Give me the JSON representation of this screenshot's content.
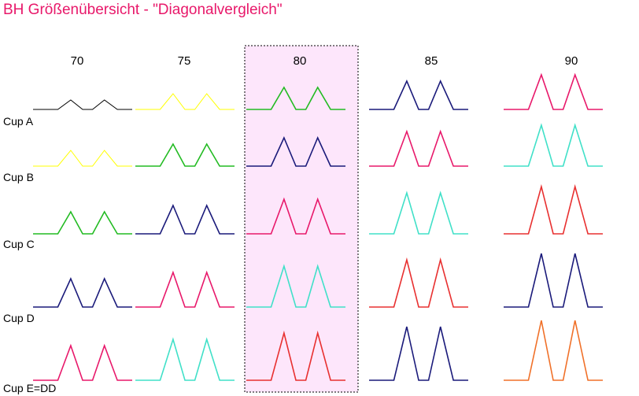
{
  "title": "BH Größenübersicht - \"Diagonalvergleich\"",
  "chart_data": {
    "type": "line",
    "title": "BH Größenübersicht - \"Diagonalvergleich\"",
    "columns": [
      "70",
      "75",
      "80",
      "85",
      "90"
    ],
    "rows": [
      "Cup A",
      "Cup B",
      "Cup C",
      "Cup D",
      "Cup E=DD"
    ],
    "highlighted_column": "80",
    "highlight_color": "#fde6fb",
    "diagonal_colors": [
      "#000000",
      "#ffff00",
      "#22bb22",
      "#1a1a7a",
      "#e8186a",
      "#40e0c8",
      "#e83030",
      "#1a1a7a",
      "#f07028"
    ],
    "cells": [
      {
        "row": "Cup A",
        "col": "70",
        "level": 1,
        "color": "#000000"
      },
      {
        "row": "Cup A",
        "col": "75",
        "level": 2,
        "color": "#ffff00"
      },
      {
        "row": "Cup A",
        "col": "80",
        "level": 3,
        "color": "#22bb22"
      },
      {
        "row": "Cup A",
        "col": "85",
        "level": 4,
        "color": "#1a1a7a"
      },
      {
        "row": "Cup A",
        "col": "90",
        "level": 5,
        "color": "#e8186a"
      },
      {
        "row": "Cup B",
        "col": "70",
        "level": 2,
        "color": "#ffff00"
      },
      {
        "row": "Cup B",
        "col": "75",
        "level": 3,
        "color": "#22bb22"
      },
      {
        "row": "Cup B",
        "col": "80",
        "level": 4,
        "color": "#1a1a7a"
      },
      {
        "row": "Cup B",
        "col": "85",
        "level": 5,
        "color": "#e8186a"
      },
      {
        "row": "Cup B",
        "col": "90",
        "level": 6,
        "color": "#40e0c8"
      },
      {
        "row": "Cup C",
        "col": "70",
        "level": 3,
        "color": "#22bb22"
      },
      {
        "row": "Cup C",
        "col": "75",
        "level": 4,
        "color": "#1a1a7a"
      },
      {
        "row": "Cup C",
        "col": "80",
        "level": 5,
        "color": "#e8186a"
      },
      {
        "row": "Cup C",
        "col": "85",
        "level": 6,
        "color": "#40e0c8"
      },
      {
        "row": "Cup C",
        "col": "90",
        "level": 7,
        "color": "#e83030"
      },
      {
        "row": "Cup D",
        "col": "70",
        "level": 4,
        "color": "#1a1a7a"
      },
      {
        "row": "Cup D",
        "col": "75",
        "level": 5,
        "color": "#e8186a"
      },
      {
        "row": "Cup D",
        "col": "80",
        "level": 6,
        "color": "#40e0c8"
      },
      {
        "row": "Cup D",
        "col": "85",
        "level": 7,
        "color": "#e83030"
      },
      {
        "row": "Cup D",
        "col": "90",
        "level": 8,
        "color": "#1a1a7a"
      },
      {
        "row": "Cup E=DD",
        "col": "70",
        "level": 5,
        "color": "#e8186a"
      },
      {
        "row": "Cup E=DD",
        "col": "75",
        "level": 6,
        "color": "#40e0c8"
      },
      {
        "row": "Cup E=DD",
        "col": "80",
        "level": 7,
        "color": "#e83030"
      },
      {
        "row": "Cup E=DD",
        "col": "85",
        "level": 8,
        "color": "#1a1a7a"
      },
      {
        "row": "Cup E=DD",
        "col": "90",
        "level": 9,
        "color": "#f07028"
      }
    ]
  }
}
